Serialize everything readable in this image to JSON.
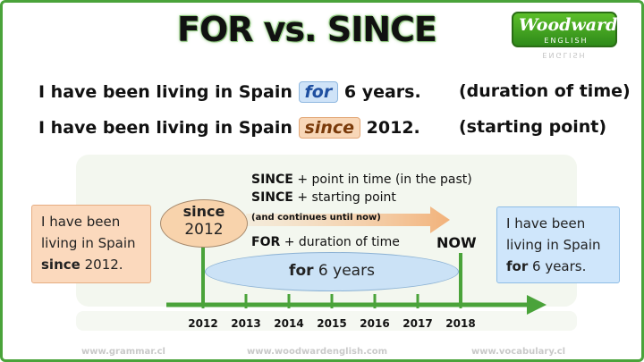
{
  "title": "FOR vs. SINCE",
  "logo": {
    "brand": "Woodward",
    "sub": "ENGLISH"
  },
  "sentences": [
    {
      "prefix": "I have been living in Spain",
      "keyword": "for",
      "suffix": "6 years.",
      "note": "(duration of time)"
    },
    {
      "prefix": "I have been living in Spain",
      "keyword": "since",
      "suffix": "2012.",
      "note": "(starting point)"
    }
  ],
  "left_box": {
    "lines": [
      "I have been",
      "living in Spain"
    ],
    "keyword": "since",
    "value": "2012."
  },
  "right_box": {
    "lines": [
      "I have been",
      "living in Spain"
    ],
    "keyword": "for",
    "value": "6 years."
  },
  "since_bubble": {
    "word": "since",
    "year": "2012"
  },
  "for_bubble": {
    "word": "for",
    "value": "6 years"
  },
  "annotations": {
    "since_rule1_key": "SINCE",
    "since_rule1_text": "+ point in time (in the past)",
    "since_rule2_key": "SINCE",
    "since_rule2_text": "+ starting point",
    "since_rule_note": "(and continues until now)",
    "for_rule_key": "FOR",
    "for_rule_text": "+ duration of time",
    "now": "NOW"
  },
  "timeline_years": [
    "2012",
    "2013",
    "2014",
    "2015",
    "2016",
    "2017",
    "2018"
  ],
  "footer": {
    "left": "www.grammar.cl",
    "center": "www.woodwardenglish.com",
    "right": "www.vocabulary.cl"
  },
  "colors": {
    "accent_green": "#4aa33a",
    "since_orange": "#f8d3ac",
    "for_blue": "#cbe2f6"
  }
}
